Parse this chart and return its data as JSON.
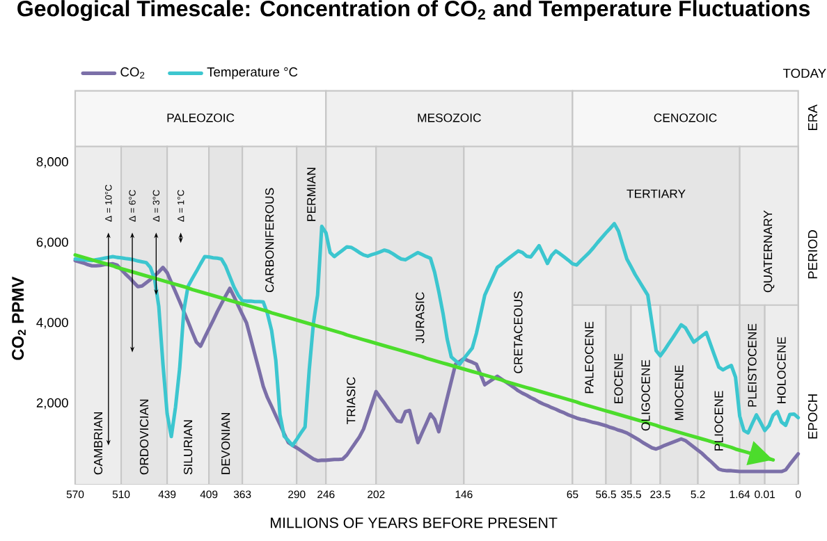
{
  "chart_data": {
    "type": "line",
    "title": "Geological Timescale: Concentration of CO$_{2}$ and Temperature Fluctuations",
    "xlabel": "MILLIONS OF YEARS BEFORE PRESENT",
    "ylabel": "CO$_{2}$ PPMV",
    "categories": [
      "570",
      null,
      null,
      null,
      null,
      null,
      null,
      null,
      null,
      null,
      null,
      "510",
      null,
      null,
      null,
      null,
      null,
      null,
      null,
      null,
      null,
      null,
      "439",
      null,
      null,
      null,
      null,
      null,
      null,
      null,
      null,
      null,
      "409",
      null,
      null,
      null,
      null,
      null,
      null,
      null,
      "363",
      null,
      null,
      null,
      null,
      null,
      null,
      null,
      null,
      null,
      null,
      null,
      null,
      "290",
      null,
      null,
      null,
      null,
      null,
      null,
      "246",
      null,
      null,
      null,
      null,
      null,
      null,
      null,
      null,
      null,
      null,
      null,
      "202",
      null,
      null,
      null,
      null,
      null,
      null,
      null,
      null,
      null,
      null,
      null,
      null,
      null,
      null,
      null,
      null,
      null,
      null,
      null,
      null,
      "146",
      null,
      null,
      null,
      null,
      null,
      null,
      null,
      null,
      null,
      null,
      null,
      null,
      null,
      null,
      null,
      null,
      null,
      null,
      null,
      null,
      null,
      null,
      null,
      null,
      null,
      "65",
      null,
      null,
      null,
      null,
      null,
      null,
      null,
      "56.5",
      null,
      null,
      null,
      null,
      null,
      "35.5",
      null,
      null,
      null,
      null,
      null,
      null,
      "23.5",
      null,
      null,
      null,
      null,
      null,
      null,
      null,
      null,
      "5.2",
      null,
      null,
      null,
      null,
      null,
      null,
      null,
      null,
      null,
      "1.64",
      null,
      null,
      null,
      null,
      null,
      "0.01",
      null,
      null,
      null,
      null,
      null,
      null,
      null,
      "0"
    ],
    "ylim": [
      0,
      8400
    ],
    "yticks": [
      {
        "value": 2000,
        "label": "2,000"
      },
      {
        "value": 4000,
        "label": "4,000"
      },
      {
        "value": 6000,
        "label": "6,000"
      },
      {
        "value": 8000,
        "label": "8,000"
      }
    ],
    "legend": "top left",
    "series": [
      {
        "name": "CO$_{2}$",
        "color": "#7b6fa8",
        "values": [
          5560,
          5530,
          5500,
          5460,
          5430,
          5430,
          5440,
          5460,
          5470,
          5480,
          5450,
          5340,
          5230,
          5130,
          5020,
          4910,
          4930,
          5010,
          5090,
          5180,
          5280,
          5390,
          5260,
          5020,
          4780,
          4540,
          4290,
          4040,
          3780,
          3530,
          3430,
          3650,
          3860,
          4070,
          4290,
          4490,
          4680,
          4870,
          4660,
          4440,
          4220,
          4010,
          3620,
          3220,
          2830,
          2430,
          2150,
          1930,
          1700,
          1480,
          1250,
          1030,
          960,
          900,
          830,
          760,
          690,
          620,
          580,
          590,
          590,
          600,
          610,
          610,
          620,
          720,
          870,
          1020,
          1170,
          1370,
          1680,
          1990,
          2300,
          2150,
          2010,
          1860,
          1710,
          1570,
          1550,
          1800,
          1830,
          1430,
          1030,
          1270,
          1500,
          1740,
          1610,
          1300,
          1720,
          2140,
          2560,
          2980,
          3050,
          3120,
          3070,
          3030,
          2980,
          2730,
          2470,
          2540,
          2610,
          2680,
          2610,
          2540,
          2470,
          2400,
          2320,
          2260,
          2210,
          2150,
          2100,
          2040,
          1990,
          1950,
          1900,
          1860,
          1810,
          1770,
          1720,
          1680,
          1640,
          1610,
          1590,
          1560,
          1530,
          1510,
          1480,
          1450,
          1410,
          1380,
          1340,
          1310,
          1270,
          1210,
          1150,
          1090,
          1020,
          960,
          900,
          870,
          910,
          960,
          1000,
          1040,
          1080,
          1120,
          1080,
          1000,
          920,
          840,
          760,
          660,
          570,
          470,
          370,
          340,
          330,
          330,
          320,
          310,
          310,
          310,
          310,
          310,
          310,
          310,
          310,
          310,
          310,
          310,
          350,
          490,
          620,
          750
        ]
      },
      {
        "name": "Temperature °C",
        "color": "#3cc6cf",
        "values": [
          5600,
          5590,
          5580,
          5570,
          5560,
          5580,
          5600,
          5620,
          5640,
          5660,
          5640,
          5630,
          5610,
          5600,
          5580,
          5550,
          5530,
          5510,
          5390,
          5100,
          4420,
          2980,
          1750,
          1180,
          1910,
          2880,
          4320,
          4920,
          5110,
          5290,
          5480,
          5660,
          5650,
          5630,
          5620,
          5600,
          5420,
          5160,
          4900,
          4700,
          4560,
          4550,
          4550,
          4540,
          4540,
          4530,
          4240,
          3820,
          3080,
          1720,
          1190,
          1080,
          960,
          1110,
          1270,
          1420,
          2840,
          4000,
          4700,
          6410,
          6250,
          5760,
          5660,
          5740,
          5820,
          5900,
          5890,
          5830,
          5760,
          5700,
          5670,
          5710,
          5740,
          5780,
          5820,
          5790,
          5730,
          5660,
          5600,
          5580,
          5640,
          5700,
          5760,
          5710,
          5660,
          5620,
          5270,
          4790,
          4250,
          3610,
          3160,
          3070,
          2980,
          3120,
          3250,
          3380,
          3750,
          4220,
          4700,
          4930,
          5160,
          5390,
          5470,
          5560,
          5640,
          5720,
          5800,
          5760,
          5670,
          5650,
          5790,
          5930,
          5710,
          5490,
          5690,
          5800,
          5730,
          5650,
          5570,
          5480,
          5450,
          5560,
          5660,
          5760,
          5880,
          6010,
          6130,
          6250,
          6360,
          6480,
          6290,
          5940,
          5600,
          5410,
          5210,
          5040,
          4870,
          4700,
          4010,
          3320,
          3190,
          3330,
          3490,
          3640,
          3800,
          3960,
          3890,
          3710,
          3530,
          3610,
          3690,
          3770,
          3480,
          3190,
          2910,
          2840,
          2900,
          2950,
          2660,
          1690,
          1330,
          1270,
          1500,
          1720,
          1530,
          1330,
          1450,
          1710,
          1800,
          1540,
          1460,
          1730,
          1740,
          1650
        ]
      },
      {
        "type": "line",
        "color": "#4cdc2c",
        "values": [
          5700,
          5670,
          5640,
          5610,
          5580,
          5550,
          5520,
          5490,
          5460,
          5430,
          5390,
          5360,
          5330,
          5300,
          5270,
          5240,
          5210,
          5180,
          5150,
          5120,
          5090,
          5060,
          5030,
          5000,
          4970,
          4940,
          4910,
          4880,
          4840,
          4810,
          4780,
          4750,
          4720,
          4690,
          4660,
          4630,
          4600,
          4570,
          4540,
          4510,
          4480,
          4450,
          4420,
          4390,
          4360,
          4330,
          4300,
          4260,
          4230,
          4200,
          4170,
          4140,
          4110,
          4080,
          4050,
          4020,
          3990,
          3960,
          3930,
          3900,
          3870,
          3840,
          3810,
          3780,
          3750,
          3710,
          3680,
          3650,
          3620,
          3590,
          3560,
          3530,
          3500,
          3470,
          3440,
          3410,
          3380,
          3350,
          3320,
          3290,
          3260,
          3230,
          3200,
          3170,
          3130,
          3100,
          3070,
          3040,
          3010,
          2980,
          2950,
          2920,
          2890,
          2860,
          2830,
          2800,
          2770,
          2740,
          2710,
          2680,
          2650,
          2620,
          2590,
          2550,
          2520,
          2490,
          2460,
          2430,
          2400,
          2370,
          2340,
          2310,
          2280,
          2250,
          2220,
          2190,
          2160,
          2130,
          2100,
          2070,
          2040,
          2000,
          1970,
          1940,
          1910,
          1880,
          1850,
          1820,
          1790,
          1760,
          1730,
          1700,
          1670,
          1640,
          1610,
          1580,
          1550,
          1520,
          1490,
          1460,
          1420,
          1390,
          1360,
          1330,
          1300,
          1270,
          1240,
          1210,
          1180,
          1150,
          1120,
          1090,
          1060,
          1030,
          1000,
          970,
          940,
          910,
          870,
          840,
          810,
          780,
          750,
          720,
          690,
          660,
          630,
          600,
          null,
          null,
          null,
          null,
          null,
          null
        ]
      }
    ],
    "bands": [
      {
        "axis": "x",
        "from": "570",
        "to": "246",
        "label": "PALEOZOIC"
      },
      {
        "axis": "x",
        "from": "246",
        "to": "65",
        "label": "MESOZOIC"
      },
      {
        "axis": "x",
        "from": "65",
        "to": "0",
        "label": "CENOZOIC"
      },
      {
        "axis": "x",
        "from": "570",
        "to": "510",
        "label": "CAMBRIAN"
      },
      {
        "axis": "x",
        "from": "510",
        "to": "439",
        "label": "ORDOVICIAN"
      },
      {
        "axis": "x",
        "from": "439",
        "to": "409",
        "label": "SILURIAN"
      },
      {
        "axis": "x",
        "from": "409",
        "to": "363",
        "label": "DEVONIAN"
      },
      {
        "axis": "x",
        "from": "363",
        "to": "290",
        "label": "CARBONIFEROUS"
      },
      {
        "axis": "x",
        "from": "290",
        "to": "246",
        "label": "PERMIAN"
      },
      {
        "axis": "x",
        "from": "246",
        "to": "202",
        "label": "TRIASIC"
      },
      {
        "axis": "x",
        "from": "202",
        "to": "146",
        "label": "JURASIC"
      },
      {
        "axis": "x",
        "from": "146",
        "to": "65",
        "label": "CRETACEOUS"
      },
      {
        "axis": "x",
        "from": "65",
        "to": "1.64",
        "label": "TERTIARY"
      },
      {
        "axis": "x",
        "from": "1.64",
        "to": "0",
        "label": "QUATERNARY"
      },
      {
        "axis": "x",
        "from": "65",
        "to": "56.5",
        "label": "PALEOCENE"
      },
      {
        "axis": "x",
        "from": "56.5",
        "to": "35.5",
        "label": "EOCENE"
      },
      {
        "axis": "x",
        "from": "35.5",
        "to": "23.5",
        "label": "OLIGOCENE"
      },
      {
        "axis": "x",
        "from": "23.5",
        "to": "5.2",
        "label": "MIOCENE"
      },
      {
        "axis": "x",
        "from": "5.2",
        "to": "1.64",
        "label": "PLIOCENE"
      },
      {
        "axis": "x",
        "from": "1.64",
        "to": "0.01",
        "label": "PLEISTOCENE"
      },
      {
        "axis": "x",
        "from": "0.01",
        "to": "0",
        "label": "HOLOCENE"
      }
    ],
    "annotations": [
      "TODAY",
      "ERA",
      "PERIOD",
      "EPOCH",
      "Δ = 10°C",
      "Δ = 6°C",
      "Δ = 3°C",
      "Δ = 1°C"
    ]
  }
}
